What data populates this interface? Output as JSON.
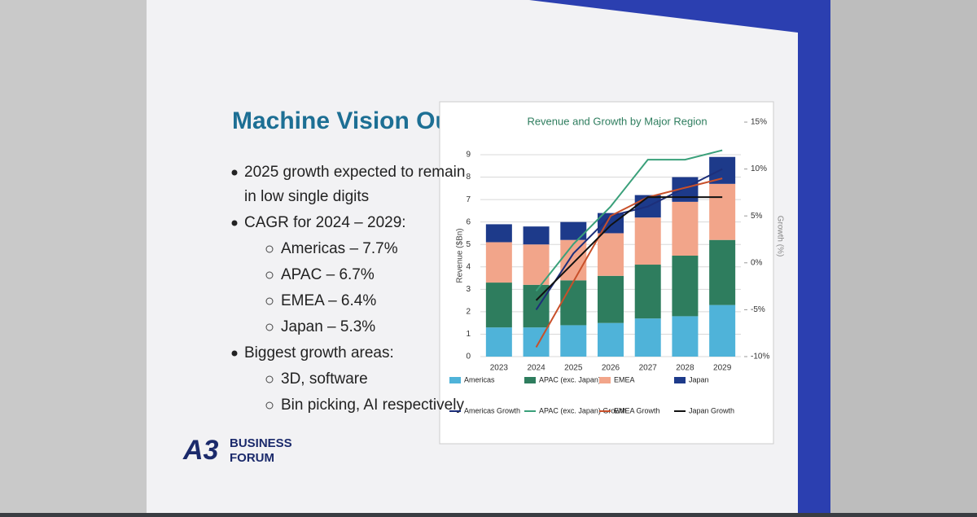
{
  "slide": {
    "title": "Machine Vision Outlook",
    "bullets": [
      {
        "lines": [
          "2025 growth expected to remain",
          "in low single digits"
        ],
        "level": 0
      },
      {
        "lines": [
          "CAGR for 2024 – 2029:"
        ],
        "level": 0
      },
      {
        "lines": [
          "Americas – 7.7%"
        ],
        "level": 1
      },
      {
        "lines": [
          "APAC – 6.7%"
        ],
        "level": 1
      },
      {
        "lines": [
          "EMEA – 6.4%"
        ],
        "level": 1
      },
      {
        "lines": [
          "Japan – 5.3%"
        ],
        "level": 1
      },
      {
        "lines": [
          "Biggest growth areas:"
        ],
        "level": 0
      },
      {
        "lines": [
          "3D, software"
        ],
        "level": 1
      },
      {
        "lines": [
          "Bin picking, AI respectively"
        ],
        "level": 1
      }
    ],
    "logo": {
      "mark": "A3",
      "line1": "BUSINESS",
      "line2": "FORUM"
    }
  },
  "chart_data": {
    "type": "bar-line",
    "title": "Revenue and Growth by Major Region",
    "y_label": "Revenue ($Bn)",
    "y2_label": "Growth (%)",
    "categories": [
      "2023",
      "2024",
      "2025",
      "2026",
      "2027",
      "2028",
      "2029"
    ],
    "ylim": [
      0,
      9
    ],
    "yticks": [
      0,
      1,
      2,
      3,
      4,
      5,
      6,
      7,
      8,
      9
    ],
    "y2lim": [
      -10,
      15
    ],
    "y2ticks": [
      {
        "value": -10,
        "label": "-10%"
      },
      {
        "value": -5,
        "label": "-5%"
      },
      {
        "value": 0,
        "label": "0%"
      },
      {
        "value": 5,
        "label": "5%"
      },
      {
        "value": 10,
        "label": "10%"
      },
      {
        "value": 15,
        "label": "15%"
      }
    ],
    "grid": true,
    "series": [
      {
        "name": "Americas",
        "color": "#4fb3d9",
        "kind": "bar",
        "values": [
          1.3,
          1.3,
          1.4,
          1.5,
          1.7,
          1.8,
          2.3
        ]
      },
      {
        "name": "APAC (exc. Japan)",
        "color": "#2e7d5e",
        "kind": "bar",
        "values": [
          2.0,
          1.9,
          2.0,
          2.1,
          2.4,
          2.7,
          2.9
        ]
      },
      {
        "name": "EMEA",
        "color": "#f2a58a",
        "kind": "bar",
        "values": [
          1.8,
          1.8,
          1.8,
          1.9,
          2.1,
          2.4,
          2.5
        ]
      },
      {
        "name": "Japan",
        "color": "#1d3a8a",
        "kind": "bar",
        "values": [
          0.8,
          0.8,
          0.8,
          0.9,
          1.0,
          1.1,
          1.2
        ]
      },
      {
        "name": "Americas Growth",
        "color": "#1d2f7a",
        "kind": "line",
        "axis": "y2",
        "values": [
          null,
          -5,
          1,
          5,
          6,
          8,
          10
        ]
      },
      {
        "name": "APAC (exc. Japan) Growth",
        "color": "#3aa07a",
        "kind": "line",
        "axis": "y2",
        "values": [
          null,
          -3,
          2,
          6,
          11,
          11,
          12
        ]
      },
      {
        "name": "EMEA Growth",
        "color": "#c8502a",
        "kind": "line",
        "axis": "y2",
        "values": [
          null,
          -9,
          -2,
          5,
          7,
          8,
          9
        ]
      },
      {
        "name": "Japan Growth",
        "color": "#111111",
        "kind": "line",
        "axis": "y2",
        "values": [
          null,
          -4,
          0,
          4,
          7,
          7,
          7
        ]
      }
    ]
  }
}
